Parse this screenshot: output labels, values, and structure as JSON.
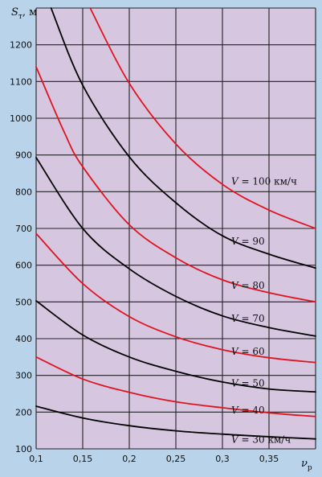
{
  "chart_data": {
    "type": "line",
    "ylabel": {
      "main": "S",
      "sub": "т",
      "unit": ", м"
    },
    "xlabel": {
      "main": "ν",
      "sub": "р"
    },
    "xlim": [
      0.1,
      0.4
    ],
    "ylim": [
      100,
      1300
    ],
    "x_ticks": [
      0.1,
      0.15,
      0.2,
      0.25,
      0.3,
      0.35
    ],
    "x_tick_labels": [
      "0,1",
      "0,15",
      "0,2",
      "0,25",
      "0,3",
      "0,35"
    ],
    "y_ticks": [
      100,
      200,
      300,
      400,
      500,
      600,
      700,
      800,
      900,
      1000,
      1100,
      1200
    ],
    "y_tick_labels": [
      "100",
      "200",
      "300",
      "400",
      "500",
      "600",
      "700",
      "800",
      "900",
      "1000",
      "1100",
      "1200"
    ],
    "grid": true,
    "background_color": "#b9d3ea",
    "plot_background_color": "#d6c6e0",
    "grid_color": "#222222",
    "series": [
      {
        "label_var": "V",
        "label_text": " = 30 км/ч",
        "label_y": 125,
        "color": "#000000",
        "x": [
          0.1,
          0.15,
          0.2,
          0.25,
          0.3,
          0.35,
          0.4
        ],
        "values": [
          216,
          184,
          163,
          149,
          140,
          133,
          127
        ]
      },
      {
        "label_var": "V",
        "label_text": " = 40",
        "label_y": 205,
        "color": "#e0141e",
        "x": [
          0.1,
          0.15,
          0.2,
          0.25,
          0.3,
          0.35,
          0.4
        ],
        "values": [
          350,
          290,
          254,
          228,
          212,
          198,
          188
        ]
      },
      {
        "label_var": "V",
        "label_text": " = 50",
        "label_y": 278,
        "color": "#000000",
        "x": [
          0.1,
          0.15,
          0.2,
          0.25,
          0.3,
          0.35,
          0.4
        ],
        "values": [
          503,
          410,
          350,
          311,
          282,
          263,
          255
        ]
      },
      {
        "label_var": "V",
        "label_text": " = 60",
        "label_y": 365,
        "color": "#e0141e",
        "x": [
          0.1,
          0.15,
          0.2,
          0.25,
          0.3,
          0.35,
          0.4
        ],
        "values": [
          686,
          550,
          460,
          405,
          370,
          348,
          335
        ]
      },
      {
        "label_var": "V",
        "label_text": " = 70",
        "label_y": 455,
        "color": "#000000",
        "x": [
          0.1,
          0.15,
          0.2,
          0.25,
          0.3,
          0.35,
          0.4
        ],
        "values": [
          893,
          700,
          590,
          515,
          462,
          430,
          407
        ]
      },
      {
        "label_var": "V",
        "label_text": " = 80",
        "label_y": 545,
        "color": "#e0141e",
        "x": [
          0.1,
          0.13,
          0.15,
          0.2,
          0.25,
          0.3,
          0.35,
          0.4
        ],
        "values": [
          1140,
          963,
          868,
          710,
          620,
          560,
          525,
          500
        ]
      },
      {
        "label_var": "V",
        "label_text": " = 90",
        "label_y": 665,
        "color": "#000000",
        "x": [
          0.116,
          0.15,
          0.2,
          0.25,
          0.3,
          0.35,
          0.4
        ],
        "values": [
          1300,
          1090,
          895,
          770,
          680,
          630,
          592
        ]
      },
      {
        "label_var": "V",
        "label_text": " = 100 км/ч",
        "label_y": 828,
        "color": "#e0141e",
        "x": [
          0.158,
          0.2,
          0.25,
          0.3,
          0.35,
          0.4
        ],
        "values": [
          1300,
          1095,
          930,
          820,
          750,
          700
        ]
      }
    ]
  }
}
